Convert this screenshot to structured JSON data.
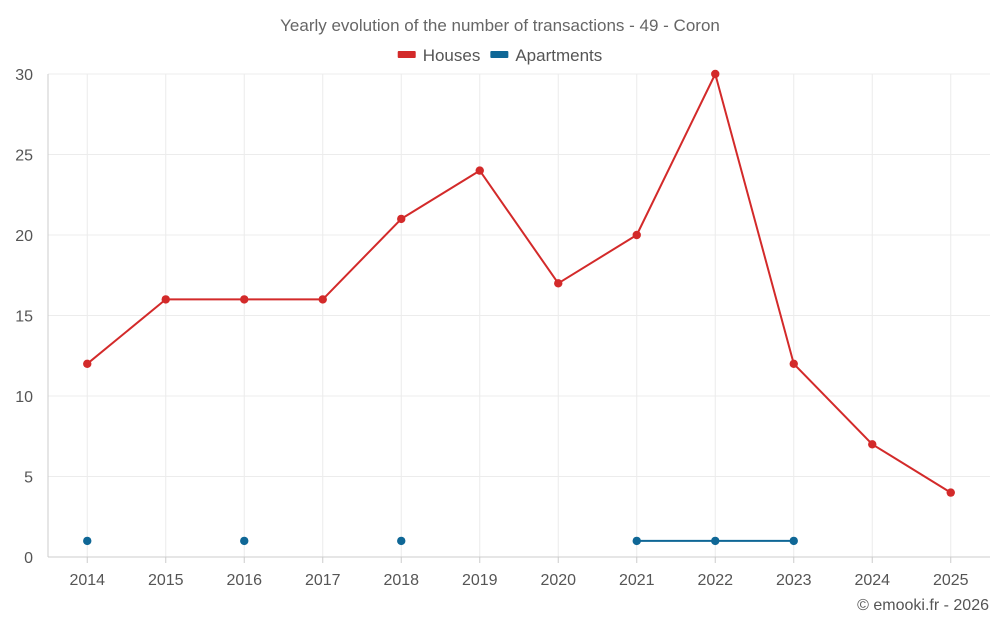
{
  "chart_data": {
    "type": "line",
    "title": "Yearly evolution of the number of transactions - 49 - Coron",
    "x": [
      "2014",
      "2015",
      "2016",
      "2017",
      "2018",
      "2019",
      "2020",
      "2021",
      "2022",
      "2023",
      "2024",
      "2025"
    ],
    "ylim": [
      0,
      30
    ],
    "yticks": [
      0,
      5,
      10,
      15,
      20,
      25,
      30
    ],
    "grid": true,
    "legend_position": "top-center",
    "series": [
      {
        "name": "Houses",
        "color": "#d32a2a",
        "values": [
          12,
          16,
          16,
          16,
          21,
          24,
          17,
          20,
          30,
          12,
          7,
          4
        ]
      },
      {
        "name": "Apartments",
        "color": "#0f6796",
        "values": [
          1,
          null,
          1,
          null,
          1,
          null,
          null,
          1,
          1,
          1,
          null,
          null
        ]
      }
    ],
    "xlabel": "",
    "ylabel": ""
  },
  "credit": "© emooki.fr - 2026"
}
